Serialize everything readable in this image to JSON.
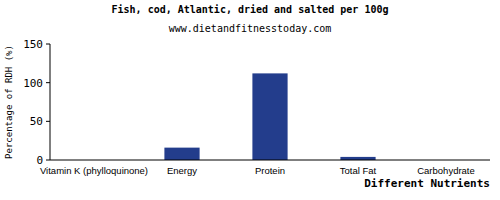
{
  "chart_data": {
    "type": "bar",
    "title": "Fish, cod, Atlantic, dried and salted per 100g",
    "subtitle": "www.dietandfitnesstoday.com",
    "x_label": "Different Nutrients",
    "y_label": "Percentage of RDH (%)",
    "categories": [
      "Vitamin K (phylloquinone)",
      "Energy",
      "Protein",
      "Total Fat",
      "Carbohydrate"
    ],
    "values": [
      0,
      16,
      112,
      4,
      0
    ],
    "color": "#233d8c",
    "ylim": [
      0,
      150
    ],
    "yticks": [
      0,
      50,
      100,
      150
    ],
    "grid": false
  }
}
